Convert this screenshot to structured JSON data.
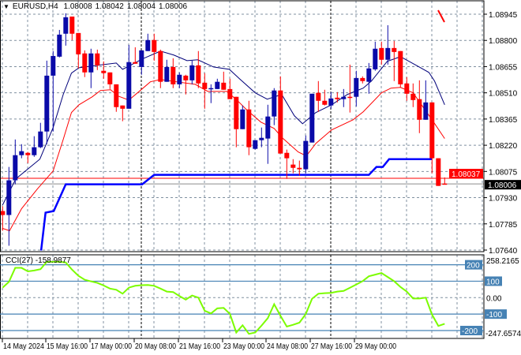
{
  "header": {
    "symbol": "EURUSD,H4",
    "open": "1.08008",
    "high": "1.08042",
    "low": "1.08004",
    "close": "1.08006"
  },
  "cci": {
    "label": "CCI(27)",
    "value": "-158.9877",
    "scale_max": "258.2165",
    "scale_min": "-247.6574",
    "levels": [
      "200",
      "100",
      "0.00",
      "-100",
      "-200"
    ],
    "level_values": [
      200,
      100,
      0,
      -100,
      -200
    ],
    "series": [
      61,
      96,
      181,
      181,
      160,
      165,
      173,
      218,
      218,
      218,
      214,
      170,
      133,
      109,
      99,
      90,
      74,
      55,
      48,
      24,
      61,
      72,
      76,
      77,
      72,
      55,
      37,
      34,
      10,
      -12,
      13,
      0,
      -80,
      -96,
      -65,
      -62,
      -99,
      -212,
      -168,
      -220,
      -212,
      -170,
      -124,
      -40,
      -110,
      -176,
      -165,
      -152,
      -100,
      -7,
      24,
      27,
      29,
      37,
      41,
      60,
      80,
      100,
      130,
      140,
      150,
      125,
      100,
      65,
      37,
      -5,
      -5,
      0,
      -103,
      -172,
      -159
    ]
  },
  "price_axis": {
    "ticks": [
      "1.08945",
      "1.08800",
      "1.08655",
      "1.08510",
      "1.08365",
      "1.08220",
      "1.08075",
      "1.07930",
      "1.07785",
      "1.07640"
    ],
    "ask_label": "1.08037",
    "bid_label": "1.08006"
  },
  "time_axis": {
    "labels": [
      "14 May 2024",
      "15 May 16:00",
      "17 May 00:00",
      "20 May 08:00",
      "21 May 16:00",
      "23 May 00:00",
      "24 May 08:00",
      "27 May 16:00",
      "29 May 00:00"
    ]
  },
  "colors": {
    "bull": "#0a0aa8",
    "bear": "#ff0000",
    "ma_fast": "#00007a",
    "ma_slow": "#ff0000",
    "support": "#0000ff",
    "cci_line": "#7cfc00",
    "cci_level": "#4682b4",
    "ask_line": "#ff0000",
    "bid_line": "#8c8c8c"
  },
  "chart_data": {
    "type": "candlestick",
    "ylim": [
      1.0764,
      1.08945
    ],
    "ohlc": [
      [
        1.07856,
        1.07882,
        1.07747,
        1.07834
      ],
      [
        1.07834,
        1.081,
        1.07664,
        1.08026
      ],
      [
        1.08026,
        1.08252,
        1.08004,
        1.08165
      ],
      [
        1.08165,
        1.08226,
        1.08148,
        1.08187
      ],
      [
        1.08178,
        1.08183,
        1.08121,
        1.08165
      ],
      [
        1.08165,
        1.0827,
        1.08156,
        1.08209
      ],
      [
        1.08209,
        1.08344,
        1.08204,
        1.08296
      ],
      [
        1.08296,
        1.08688,
        1.08226,
        1.08605
      ],
      [
        1.08605,
        1.08741,
        1.08296,
        1.08714
      ],
      [
        1.0871,
        1.08858,
        1.08706,
        1.08832
      ],
      [
        1.08837,
        1.0895,
        1.08771,
        1.08928
      ],
      [
        1.08932,
        1.08932,
        1.08802,
        1.08837
      ],
      [
        1.08841,
        1.08841,
        1.08645,
        1.08723
      ],
      [
        1.08728,
        1.08745,
        1.08597,
        1.08623
      ],
      [
        1.08623,
        1.08754,
        1.08536,
        1.08728
      ],
      [
        1.08728,
        1.08749,
        1.08636,
        1.08662
      ],
      [
        1.08632,
        1.08684,
        1.08588,
        1.08619
      ],
      [
        1.08623,
        1.08623,
        1.08531,
        1.08557
      ],
      [
        1.08557,
        1.08557,
        1.08405,
        1.08431
      ],
      [
        1.0844,
        1.0844,
        1.08353,
        1.08422
      ],
      [
        1.08422,
        1.08775,
        1.08422,
        1.0868
      ],
      [
        1.0868,
        1.08762,
        1.08671,
        1.08671
      ],
      [
        1.08653,
        1.08745,
        1.0861,
        1.08745
      ],
      [
        1.08741,
        1.08837,
        1.08741,
        1.08802
      ],
      [
        1.08802,
        1.08837,
        1.08688,
        1.08736
      ],
      [
        1.08741,
        1.08749,
        1.08536,
        1.08571
      ],
      [
        1.08571,
        1.08693,
        1.08571,
        1.08653
      ],
      [
        1.08653,
        1.08701,
        1.08536,
        1.08557
      ],
      [
        1.08557,
        1.08623,
        1.08536,
        1.0861
      ],
      [
        1.08605,
        1.0861,
        1.08501,
        1.08579
      ],
      [
        1.08579,
        1.08688,
        1.08557,
        1.08662
      ],
      [
        1.08662,
        1.08741,
        1.08536,
        1.08562
      ],
      [
        1.08566,
        1.08619,
        1.08422,
        1.08531
      ],
      [
        1.08531,
        1.08557,
        1.08453,
        1.08536
      ],
      [
        1.08531,
        1.08588,
        1.08531,
        1.08571
      ],
      [
        1.08566,
        1.08627,
        1.08527,
        1.08527
      ],
      [
        1.08531,
        1.08588,
        1.08475,
        1.08475
      ],
      [
        1.08488,
        1.08488,
        1.08209,
        1.08309
      ],
      [
        1.08309,
        1.0844,
        1.08309,
        1.08418
      ],
      [
        1.08418,
        1.08466,
        1.08165,
        1.08209
      ],
      [
        1.082,
        1.08248,
        1.08196,
        1.08248
      ],
      [
        1.08248,
        1.08318,
        1.08209,
        1.08261
      ],
      [
        1.08257,
        1.08444,
        1.08117,
        1.08379
      ],
      [
        1.08379,
        1.08536,
        1.08331,
        1.08523
      ],
      [
        1.08523,
        1.08601,
        1.08174,
        1.08174
      ],
      [
        1.08178,
        1.08196,
        1.08034,
        1.08148
      ],
      [
        1.08113,
        1.08143,
        1.08065,
        1.08095
      ],
      [
        1.08095,
        1.08135,
        1.08052,
        1.08087
      ],
      [
        1.08087,
        1.08274,
        1.08065,
        1.08244
      ],
      [
        1.08235,
        1.08505,
        1.08235,
        1.08505
      ],
      [
        1.0851,
        1.08575,
        1.08405,
        1.08466
      ],
      [
        1.08466,
        1.08527,
        1.0844,
        1.08444
      ],
      [
        1.0844,
        1.08514,
        1.08422,
        1.08479
      ],
      [
        1.08483,
        1.08514,
        1.08457,
        1.08475
      ],
      [
        1.08475,
        1.08531,
        1.08431,
        1.08488
      ],
      [
        1.08488,
        1.08666,
        1.08401,
        1.08483
      ],
      [
        1.08488,
        1.08632,
        1.08435,
        1.08592
      ],
      [
        1.08592,
        1.08601,
        1.08562,
        1.08575
      ],
      [
        1.08571,
        1.08675,
        1.08505,
        1.08645
      ],
      [
        1.0864,
        1.08793,
        1.08632,
        1.08754
      ],
      [
        1.08758,
        1.08793,
        1.08666,
        1.08693
      ],
      [
        1.08693,
        1.08884,
        1.08666,
        1.08758
      ],
      [
        1.08758,
        1.08797,
        1.08575,
        1.08736
      ],
      [
        1.08741,
        1.08741,
        1.0854,
        1.08557
      ],
      [
        1.08562,
        1.08597,
        1.08466,
        1.08505
      ],
      [
        1.08505,
        1.08562,
        1.08431,
        1.0847
      ],
      [
        1.08475,
        1.08579,
        1.08287,
        1.08361
      ],
      [
        1.08361,
        1.08579,
        1.08361,
        1.08457
      ],
      [
        1.08457,
        1.08457,
        1.08065,
        1.08148
      ],
      [
        1.08148,
        1.08148,
        1.07995,
        1.07995
      ],
      [
        1.08008,
        1.08042,
        1.08004,
        1.08006
      ]
    ],
    "ma_fast": [
      [
        0,
        1.0789
      ],
      [
        2.1,
        1.08034
      ],
      [
        5.9,
        1.08143
      ],
      [
        8,
        1.08318
      ],
      [
        9.6,
        1.08501
      ],
      [
        10.9,
        1.08619
      ],
      [
        12.1,
        1.08649
      ],
      [
        18,
        1.08675
      ],
      [
        19,
        1.0864
      ],
      [
        20,
        1.08658
      ],
      [
        22.1,
        1.08697
      ],
      [
        25,
        1.08741
      ],
      [
        27.1,
        1.08719
      ],
      [
        29.2,
        1.08688
      ],
      [
        30.9,
        1.08693
      ],
      [
        33.4,
        1.08653
      ],
      [
        35.9,
        1.0864
      ],
      [
        37.5,
        1.08588
      ],
      [
        40,
        1.0851
      ],
      [
        41.9,
        1.08475
      ],
      [
        44.2,
        1.08501
      ],
      [
        46.2,
        1.08383
      ],
      [
        47.5,
        1.08339
      ],
      [
        49.6,
        1.08401
      ],
      [
        52.1,
        1.08444
      ],
      [
        54.6,
        1.08501
      ],
      [
        57.1,
        1.08536
      ],
      [
        58.4,
        1.08575
      ],
      [
        60.9,
        1.08684
      ],
      [
        63,
        1.0871
      ],
      [
        65.5,
        1.08662
      ],
      [
        67.5,
        1.08623
      ],
      [
        68.4,
        1.08575
      ],
      [
        70,
        1.08444
      ]
    ],
    "ma_slow": [
      [
        0,
        1.0776
      ],
      [
        1.1,
        1.07747
      ],
      [
        3,
        1.07869
      ],
      [
        5.5,
        1.07978
      ],
      [
        8,
        1.08078
      ],
      [
        9.6,
        1.08252
      ],
      [
        10.9,
        1.08401
      ],
      [
        12.1,
        1.08444
      ],
      [
        14.2,
        1.08488
      ],
      [
        15.5,
        1.08523
      ],
      [
        17.1,
        1.08527
      ],
      [
        18.3,
        1.08492
      ],
      [
        20,
        1.0847
      ],
      [
        21.8,
        1.08523
      ],
      [
        23.4,
        1.08571
      ],
      [
        25,
        1.08584
      ],
      [
        27.5,
        1.08571
      ],
      [
        30.5,
        1.08557
      ],
      [
        32.5,
        1.08518
      ],
      [
        35.5,
        1.08518
      ],
      [
        37.1,
        1.0847
      ],
      [
        38.7,
        1.08414
      ],
      [
        40.9,
        1.08348
      ],
      [
        43,
        1.08313
      ],
      [
        44.3,
        1.08261
      ],
      [
        46.8,
        1.08183
      ],
      [
        48.1,
        1.08161
      ],
      [
        49.6,
        1.0823
      ],
      [
        52.1,
        1.08305
      ],
      [
        55.5,
        1.08361
      ],
      [
        57.1,
        1.08405
      ],
      [
        60,
        1.0851
      ],
      [
        61.5,
        1.08536
      ],
      [
        63,
        1.0854
      ],
      [
        65,
        1.0851
      ],
      [
        68,
        1.08361
      ],
      [
        70,
        1.08257
      ]
    ],
    "support_line": [
      [
        6.1,
        1.07638
      ],
      [
        6.8,
        1.07847
      ],
      [
        8.1,
        1.07856
      ],
      [
        10,
        1.08004
      ],
      [
        22.1,
        1.08004
      ],
      [
        24,
        1.08056
      ],
      [
        58,
        1.08056
      ],
      [
        59.2,
        1.081
      ],
      [
        60.2,
        1.081
      ],
      [
        61.2,
        1.08143
      ],
      [
        68,
        1.08143
      ]
    ],
    "ask": 1.08037,
    "bid": 1.08006
  }
}
